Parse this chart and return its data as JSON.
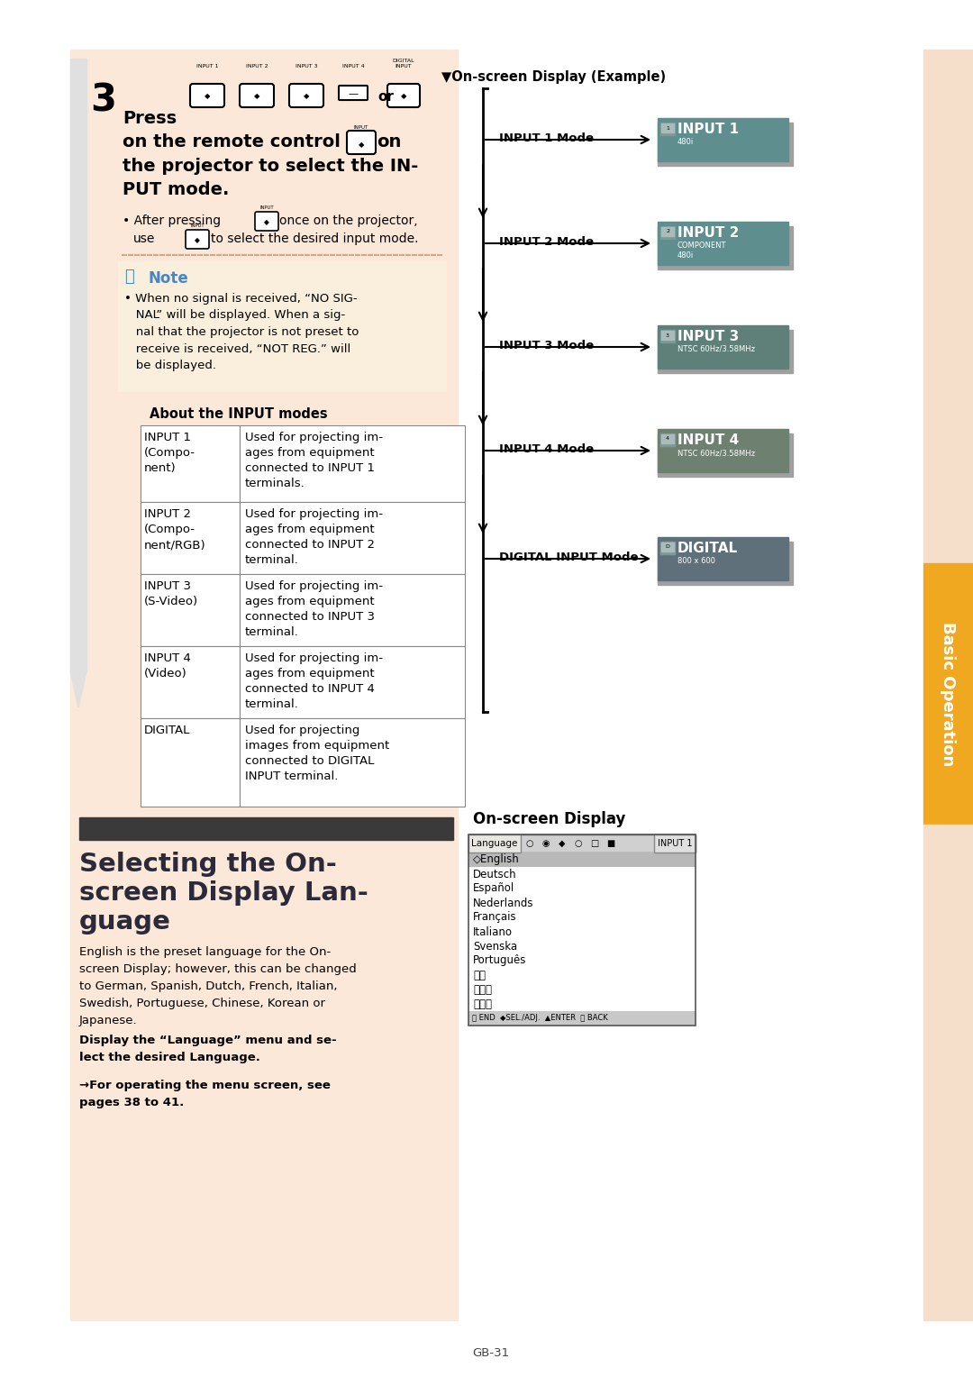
{
  "bg_color": "#ffffff",
  "page_bg": "#fce8d8",
  "sidebar_orange": "#f0a820",
  "sidebar_light": "#fce8d8",
  "page_number": "GB-31",
  "table_title": "About the INPUT modes",
  "table_rows": [
    [
      "INPUT 1\n(Compo-\nnent)",
      "Used for projecting im-\nages from equipment\nconnected to INPUT 1\nterminals."
    ],
    [
      "INPUT 2\n(Compo-\nnent/RGB)",
      "Used for projecting im-\nages from equipment\nconnected to INPUT 2\nterminal."
    ],
    [
      "INPUT 3\n(S-Video)",
      "Used for projecting im-\nages from equipment\nconnected to INPUT 3\nterminal."
    ],
    [
      "INPUT 4\n(Video)",
      "Used for projecting im-\nages from equipment\nconnected to INPUT 4\nterminal."
    ],
    [
      "DIGITAL",
      "Used for projecting\nimages from equipment\nconnected to DIGITAL\nINPUT terminal."
    ]
  ],
  "section2_title_lines": [
    "Selecting the On-",
    "screen Display Lan-",
    "guage"
  ],
  "section2_body": "English is the preset language for the On-\nscreen Display; however, this can be changed\nto German, Spanish, Dutch, French, Italian,\nSwedish, Portuguese, Chinese, Korean or\nJapanese.",
  "section2_bold": "Display the “Language” menu and se-\nlect the desired Language.",
  "section2_arrow": "→For operating the menu screen, see\npages 38 to 41.",
  "diagram_title": "▼On-screen Display (Example)",
  "diagram_modes": [
    "INPUT 1 Mode",
    "INPUT 2 Mode",
    "INPUT 3 Mode",
    "INPUT 4 Mode",
    "DIGITAL INPUT Mode"
  ],
  "input_names": [
    "INPUT 1",
    "INPUT 2",
    "INPUT 3",
    "INPUT 4",
    "DIGITAL"
  ],
  "input_subtexts": [
    "480i",
    "COMPONENT\n480i",
    "NTSC 60Hz/3.58MHz",
    "NTSC 60Hz/3.58MHz",
    "800 x 600"
  ],
  "input_colors": [
    "#5e8e8e",
    "#5e8e8e",
    "#5e8078",
    "#6e8070",
    "#60707a"
  ],
  "osd_title": "On-screen Display",
  "osd_languages": [
    "◇English",
    "Deutsch",
    "Español",
    "Nederlands",
    "Français",
    "Italiano",
    "Svenska",
    "Português",
    "汉语",
    "한국어",
    "日本語"
  ]
}
